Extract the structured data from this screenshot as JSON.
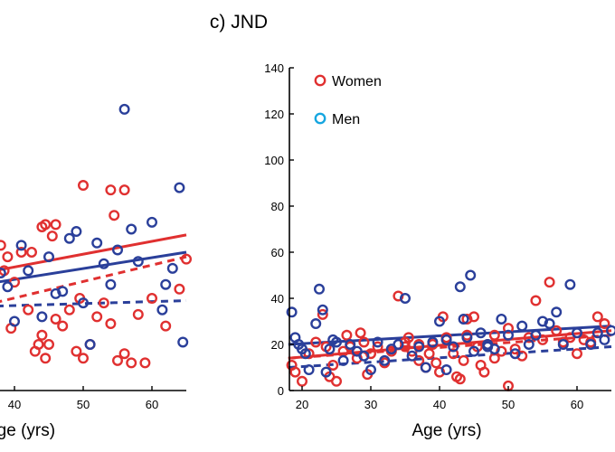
{
  "panel_right": {
    "title": "c) JND",
    "legend": [
      {
        "label": "Women",
        "color": "#e03030"
      },
      {
        "label": "Men",
        "color": "#16a6e0"
      }
    ]
  },
  "panel_left": {
    "xlabel": "Age (yrs)"
  },
  "chart_data": [
    {
      "type": "scatter",
      "panel": "left (partially cropped)",
      "xlabel": "Age (yrs)",
      "ylabel": "",
      "xlim": [
        30,
        65
      ],
      "ylim": [
        0,
        140
      ],
      "xticks": [
        40,
        50,
        60
      ],
      "grid": false,
      "series": [
        {
          "name": "Women",
          "color": "#e03030",
          "points": [
            [
              30.5,
              33
            ],
            [
              31,
              37
            ],
            [
              31.5,
              40
            ],
            [
              32,
              45
            ],
            [
              33,
              50
            ],
            [
              34,
              47
            ],
            [
              34.7,
              38
            ],
            [
              35,
              61
            ],
            [
              36,
              53
            ],
            [
              38,
              63
            ],
            [
              38.5,
              52
            ],
            [
              39,
              58
            ],
            [
              39.5,
              27
            ],
            [
              40,
              47
            ],
            [
              41,
              60
            ],
            [
              42,
              35
            ],
            [
              43,
              17
            ],
            [
              43.5,
              20
            ],
            [
              44,
              24
            ],
            [
              44.5,
              14
            ],
            [
              45,
              20
            ],
            [
              46,
              31
            ],
            [
              47,
              28
            ],
            [
              48,
              35
            ],
            [
              49,
              17
            ],
            [
              49.5,
              40
            ],
            [
              50,
              14
            ],
            [
              51,
              20
            ],
            [
              52,
              32
            ],
            [
              53,
              38
            ],
            [
              54,
              29
            ],
            [
              55,
              13
            ],
            [
              56,
              16
            ],
            [
              57,
              12
            ],
            [
              58,
              33
            ],
            [
              59,
              12
            ],
            [
              60,
              40
            ],
            [
              62,
              28
            ],
            [
              64,
              44
            ],
            [
              65,
              57
            ],
            [
              45.5,
              67
            ],
            [
              44,
              71
            ],
            [
              42.5,
              60
            ],
            [
              50,
              89
            ],
            [
              54,
              87
            ],
            [
              56,
              87
            ],
            [
              54.5,
              76
            ],
            [
              46,
              72
            ],
            [
              44.5,
              72
            ]
          ],
          "fit_solid": [
            [
              30,
              48.0
            ],
            [
              65,
              67.5
            ]
          ],
          "fit_dashed": [
            [
              30,
              33.0
            ],
            [
              65,
              58.0
            ]
          ]
        },
        {
          "name": "Men",
          "color": "#2a3f9a",
          "points": [
            [
              30.5,
              13
            ],
            [
              31.5,
              27
            ],
            [
              33,
              23
            ],
            [
              35,
              19
            ],
            [
              36,
              33
            ],
            [
              37,
              43
            ],
            [
              38,
              51
            ],
            [
              39,
              45
            ],
            [
              40,
              30
            ],
            [
              41,
              63
            ],
            [
              42,
              52
            ],
            [
              44,
              32
            ],
            [
              45,
              58
            ],
            [
              46,
              42
            ],
            [
              47,
              43
            ],
            [
              48,
              66
            ],
            [
              49,
              69
            ],
            [
              50,
              38
            ],
            [
              51,
              20
            ],
            [
              52,
              64
            ],
            [
              53,
              55
            ],
            [
              54,
              46
            ],
            [
              55,
              61
            ],
            [
              56,
              122
            ],
            [
              57,
              70
            ],
            [
              58,
              56
            ],
            [
              60,
              73
            ],
            [
              61.5,
              35
            ],
            [
              62,
              46
            ],
            [
              63,
              53
            ],
            [
              64,
              88
            ],
            [
              64.5,
              21
            ],
            [
              30,
              20
            ]
          ],
          "fit_solid": [
            [
              30,
              43.5
            ],
            [
              65,
              60.0
            ]
          ],
          "fit_dashed": [
            [
              30,
              36.0
            ],
            [
              65,
              39.0
            ]
          ]
        }
      ]
    },
    {
      "type": "scatter",
      "panel": "right",
      "title": "c) JND",
      "xlabel": "Age (yrs)",
      "ylabel": "",
      "xlim": [
        18,
        65
      ],
      "ylim": [
        0,
        140
      ],
      "xticks": [
        20,
        30,
        40,
        50,
        60
      ],
      "yticks": [
        0,
        20,
        40,
        60,
        80,
        100,
        120,
        140
      ],
      "grid": false,
      "legend": "top-left",
      "series": [
        {
          "name": "Women",
          "color": "#e03030",
          "points": [
            [
              18.5,
              11
            ],
            [
              19,
              8
            ],
            [
              20,
              4
            ],
            [
              21,
              16
            ],
            [
              22,
              21
            ],
            [
              23,
              33
            ],
            [
              23.5,
              19
            ],
            [
              24,
              6
            ],
            [
              24.5,
              11
            ],
            [
              25,
              4
            ],
            [
              26,
              17
            ],
            [
              26.5,
              24
            ],
            [
              27,
              19
            ],
            [
              28,
              14
            ],
            [
              28.5,
              25
            ],
            [
              29,
              21
            ],
            [
              29.5,
              7
            ],
            [
              30,
              16
            ],
            [
              31,
              19
            ],
            [
              32,
              12
            ],
            [
              33,
              17
            ],
            [
              34,
              41
            ],
            [
              35,
              21
            ],
            [
              35.5,
              23
            ],
            [
              36,
              17
            ],
            [
              37,
              13
            ],
            [
              38,
              10
            ],
            [
              38.5,
              16
            ],
            [
              39,
              20
            ],
            [
              39.5,
              12
            ],
            [
              40,
              8
            ],
            [
              40.5,
              32
            ],
            [
              41,
              22
            ],
            [
              42,
              16
            ],
            [
              42.5,
              6
            ],
            [
              43,
              5
            ],
            [
              43.5,
              13
            ],
            [
              44,
              31
            ],
            [
              45,
              32
            ],
            [
              45.5,
              19
            ],
            [
              46,
              11
            ],
            [
              46.5,
              8
            ],
            [
              47,
              20
            ],
            [
              48,
              14
            ],
            [
              49,
              17
            ],
            [
              50,
              2
            ],
            [
              51,
              18
            ],
            [
              52,
              15
            ],
            [
              53,
              23
            ],
            [
              54,
              39
            ],
            [
              55,
              22
            ],
            [
              56,
              47
            ],
            [
              57,
              26
            ],
            [
              58,
              21
            ],
            [
              59,
              23
            ],
            [
              60,
              16
            ],
            [
              61,
              22
            ],
            [
              62,
              21
            ],
            [
              63,
              32
            ],
            [
              64,
              29
            ],
            [
              35,
              19
            ],
            [
              37,
              20
            ],
            [
              41,
              23
            ],
            [
              44,
              24
            ],
            [
              48,
              24
            ],
            [
              50,
              27
            ]
          ],
          "fit_solid": [
            [
              18,
              14.0
            ],
            [
              65,
              26.0
            ]
          ],
          "fit_dashed": [
            [
              18,
              14.0
            ],
            [
              65,
              24.0
            ]
          ]
        },
        {
          "name": "Men",
          "color": "#2a3f9a",
          "points": [
            [
              18.5,
              34
            ],
            [
              19,
              23
            ],
            [
              19.5,
              20
            ],
            [
              20,
              18
            ],
            [
              20.5,
              16
            ],
            [
              21,
              9
            ],
            [
              22,
              29
            ],
            [
              22.5,
              44
            ],
            [
              23,
              35
            ],
            [
              23.5,
              8
            ],
            [
              24,
              18
            ],
            [
              24.5,
              22
            ],
            [
              25,
              21
            ],
            [
              26,
              13
            ],
            [
              27,
              20
            ],
            [
              28,
              17
            ],
            [
              29,
              15
            ],
            [
              30,
              9
            ],
            [
              31,
              21
            ],
            [
              32,
              13
            ],
            [
              33,
              18
            ],
            [
              34,
              20
            ],
            [
              35,
              40
            ],
            [
              36,
              15
            ],
            [
              37,
              19
            ],
            [
              38,
              10
            ],
            [
              39,
              21
            ],
            [
              40,
              30
            ],
            [
              41,
              22
            ],
            [
              42,
              19
            ],
            [
              43,
              45
            ],
            [
              43.5,
              31
            ],
            [
              44,
              23
            ],
            [
              44.5,
              50
            ],
            [
              45,
              17
            ],
            [
              46,
              25
            ],
            [
              47,
              19
            ],
            [
              48,
              18
            ],
            [
              49,
              31
            ],
            [
              50,
              24
            ],
            [
              51,
              16
            ],
            [
              52,
              28
            ],
            [
              53,
              20
            ],
            [
              54,
              24
            ],
            [
              55,
              30
            ],
            [
              56,
              29
            ],
            [
              57,
              34
            ],
            [
              58,
              20
            ],
            [
              59,
              46
            ],
            [
              60,
              25
            ],
            [
              62,
              20
            ],
            [
              63,
              25
            ],
            [
              64,
              22
            ],
            [
              65,
              26
            ],
            [
              41,
              9
            ],
            [
              47,
              20
            ]
          ],
          "fit_solid": [
            [
              18,
              20.0
            ],
            [
              65,
              28.0
            ]
          ],
          "fit_dashed": [
            [
              18,
              10.0
            ],
            [
              65,
              19.0
            ]
          ]
        }
      ]
    }
  ]
}
